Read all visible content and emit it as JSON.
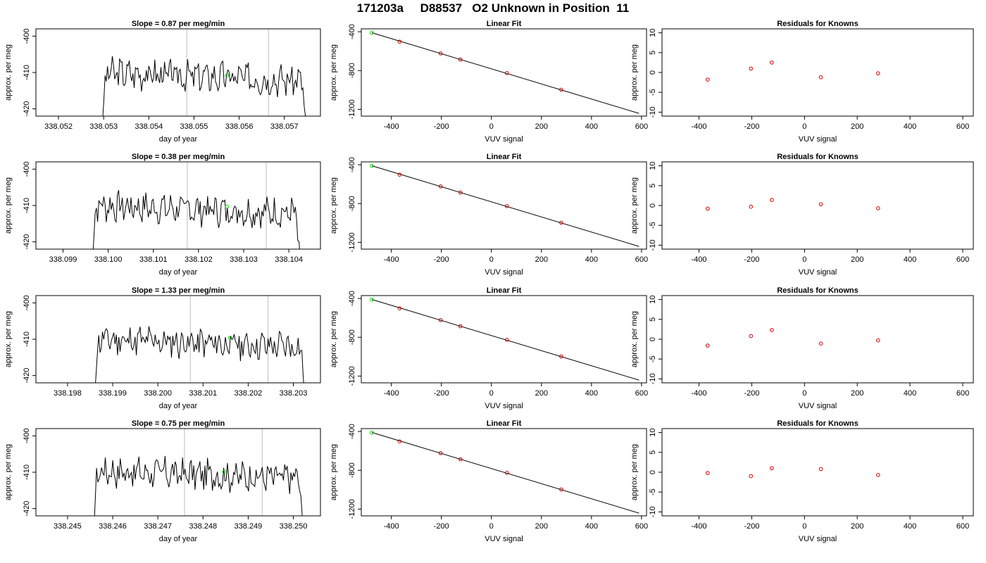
{
  "figure_title": "171203a     D88537   O2 Unknown in Position  11",
  "colors": {
    "line": "#000000",
    "grid_vline": "#c8c8c8",
    "unknown_point": "#00dd00",
    "known_point": "#cc0000",
    "frame": "#000000"
  },
  "chart_data": [
    {
      "id": "ts-1",
      "type": "line",
      "title": "Slope =  0.87  per meg/min",
      "xlabel": "day of year",
      "ylabel": "approx. per meg",
      "xlim": [
        338.0515,
        338.0578
      ],
      "ylim": [
        -422,
        -398
      ],
      "xticks": [
        "338.052",
        "338.053",
        "338.054",
        "338.055",
        "338.056",
        "338.057"
      ],
      "yticks": [
        "-400",
        "-410",
        "-420"
      ],
      "xstart": 338.05295,
      "xend": 338.05752,
      "base": -410,
      "seed": 3,
      "vlines": [
        338.05484,
        338.05665
      ],
      "unknown_point": {
        "x": 338.05573,
        "y": -410.8
      }
    },
    {
      "id": "fit-1",
      "type": "line",
      "title": "Linear Fit",
      "xlabel": "VUV signal",
      "ylabel": "approx. per meg",
      "xlim": [
        -520,
        620
      ],
      "ylim": [
        -1270,
        -370
      ],
      "xticks": [
        "-400",
        "-200",
        "0",
        "200",
        "400",
        "600"
      ],
      "yticks": [
        "-400",
        "-800",
        "-1200"
      ],
      "fit_line": {
        "x": [
          -478,
          590
        ],
        "y": [
          -410,
          -1242
        ]
      },
      "known_points": {
        "x": [
          -367,
          -203,
          -124,
          62,
          279
        ],
        "y": [
          -502,
          -623,
          -686,
          -826,
          -998
        ]
      },
      "unknown_point": {
        "x": -478,
        "y": -411
      }
    },
    {
      "id": "res-1",
      "type": "scatter",
      "title": "Residuals for Knowns",
      "xlabel": "VUV signal",
      "ylabel": "approx. per meg",
      "xlim": [
        -540,
        640
      ],
      "ylim": [
        -11,
        11
      ],
      "xticks": [
        "-400",
        "-200",
        "0",
        "200",
        "400",
        "600"
      ],
      "yticks": [
        "10",
        "5",
        "0",
        "-5",
        "-10"
      ],
      "x": [
        -367,
        -203,
        -124,
        62,
        279
      ],
      "y": [
        -1.8,
        1.0,
        2.5,
        -1.2,
        -0.2
      ]
    },
    {
      "id": "ts-2",
      "type": "line",
      "title": "Slope =  0.38  per meg/min",
      "xlabel": "day of year",
      "ylabel": "approx. per meg",
      "xlim": [
        338.0984,
        338.1047
      ],
      "ylim": [
        -422,
        -398
      ],
      "xticks": [
        "338.099",
        "338.100",
        "338.101",
        "338.102",
        "338.103",
        "338.104"
      ],
      "yticks": [
        "-400",
        "-410",
        "-420"
      ],
      "xstart": 338.09963,
      "xend": 338.10428,
      "base": -410,
      "seed": 7,
      "vlines": [
        338.10175,
        338.1035
      ],
      "unknown_point": {
        "x": 338.10263,
        "y": -410.3
      }
    },
    {
      "id": "fit-2",
      "type": "line",
      "title": "Linear Fit",
      "xlabel": "VUV signal",
      "ylabel": "approx. per meg",
      "xlim": [
        -520,
        620
      ],
      "ylim": [
        -1270,
        -370
      ],
      "xticks": [
        "-400",
        "-200",
        "0",
        "200",
        "400",
        "600"
      ],
      "yticks": [
        "-400",
        "-800",
        "-1200"
      ],
      "fit_line": {
        "x": [
          -478,
          590
        ],
        "y": [
          -410,
          -1242
        ]
      },
      "known_points": {
        "x": [
          -367,
          -203,
          -124,
          62,
          279
        ],
        "y": [
          -502,
          -623,
          -686,
          -826,
          -998
        ]
      },
      "unknown_point": {
        "x": -478,
        "y": -411
      }
    },
    {
      "id": "res-2",
      "type": "scatter",
      "title": "Residuals for Knowns",
      "xlabel": "VUV signal",
      "ylabel": "approx. per meg",
      "xlim": [
        -540,
        640
      ],
      "ylim": [
        -11,
        11
      ],
      "xticks": [
        "-400",
        "-200",
        "0",
        "200",
        "400",
        "600"
      ],
      "yticks": [
        "10",
        "5",
        "0",
        "-5",
        "-10"
      ],
      "x": [
        -367,
        -203,
        -124,
        62,
        279
      ],
      "y": [
        -0.8,
        -0.3,
        1.4,
        0.3,
        -0.7
      ]
    },
    {
      "id": "ts-3",
      "type": "line",
      "title": "Slope =  1.33  per meg/min",
      "xlabel": "day of year",
      "ylabel": "approx. per meg",
      "xlim": [
        338.1973,
        338.2036
      ],
      "ylim": [
        -422,
        -398
      ],
      "xticks": [
        "338.198",
        "338.199",
        "338.200",
        "338.201",
        "338.202",
        "338.203"
      ],
      "yticks": [
        "-400",
        "-410",
        "-420"
      ],
      "xstart": 338.19858,
      "xend": 338.2033,
      "base": -410,
      "seed": 11,
      "vlines": [
        338.20072,
        338.20244
      ],
      "unknown_point": {
        "x": 338.2016,
        "y": -409.6
      }
    },
    {
      "id": "fit-3",
      "type": "line",
      "title": "Linear Fit",
      "xlabel": "VUV signal",
      "ylabel": "approx. per meg",
      "xlim": [
        -520,
        620
      ],
      "ylim": [
        -1270,
        -370
      ],
      "xticks": [
        "-400",
        "-200",
        "0",
        "200",
        "400",
        "600"
      ],
      "yticks": [
        "-400",
        "-800",
        "-1200"
      ],
      "fit_line": {
        "x": [
          -478,
          590
        ],
        "y": [
          -410,
          -1242
        ]
      },
      "known_points": {
        "x": [
          -367,
          -203,
          -124,
          62,
          279
        ],
        "y": [
          -502,
          -623,
          -686,
          -826,
          -998
        ]
      },
      "unknown_point": {
        "x": -478,
        "y": -411
      }
    },
    {
      "id": "res-3",
      "type": "scatter",
      "title": "Residuals for Knowns",
      "xlabel": "VUV signal",
      "ylabel": "approx. per meg",
      "xlim": [
        -540,
        640
      ],
      "ylim": [
        -11,
        11
      ],
      "xticks": [
        "-400",
        "-200",
        "0",
        "200",
        "400",
        "600"
      ],
      "yticks": [
        "10",
        "5",
        "0",
        "-5",
        "-10"
      ],
      "x": [
        -367,
        -203,
        -124,
        62,
        279
      ],
      "y": [
        -1.6,
        0.8,
        2.3,
        -1.1,
        -0.3
      ]
    },
    {
      "id": "ts-4",
      "type": "line",
      "title": "Slope =  0.75  per meg/min",
      "xlabel": "day of year",
      "ylabel": "approx. per meg",
      "xlim": [
        338.2443,
        338.2506
      ],
      "ylim": [
        -422,
        -398
      ],
      "xticks": [
        "338.245",
        "338.246",
        "338.247",
        "338.248",
        "338.249",
        "338.250"
      ],
      "yticks": [
        "-400",
        "-410",
        "-420"
      ],
      "xstart": 338.24556,
      "xend": 338.25025,
      "base": -409.5,
      "seed": 17,
      "vlines": [
        338.24759,
        338.24931
      ],
      "unknown_point": {
        "x": 338.24847,
        "y": -409.9
      }
    },
    {
      "id": "fit-4",
      "type": "line",
      "title": "Linear Fit",
      "xlabel": "VUV signal",
      "ylabel": "approx. per meg",
      "xlim": [
        -520,
        620
      ],
      "ylim": [
        -1270,
        -370
      ],
      "xticks": [
        "-400",
        "-200",
        "0",
        "200",
        "400",
        "600"
      ],
      "yticks": [
        "-400",
        "-800",
        "-1200"
      ],
      "fit_line": {
        "x": [
          -478,
          590
        ],
        "y": [
          -410,
          -1242
        ]
      },
      "known_points": {
        "x": [
          -367,
          -203,
          -124,
          62,
          279
        ],
        "y": [
          -502,
          -623,
          -686,
          -826,
          -998
        ]
      },
      "unknown_point": {
        "x": -478,
        "y": -411
      }
    },
    {
      "id": "res-4",
      "type": "scatter",
      "title": "Residuals for Knowns",
      "xlabel": "VUV signal",
      "ylabel": "approx. per meg",
      "xlim": [
        -540,
        640
      ],
      "ylim": [
        -11,
        11
      ],
      "xticks": [
        "-400",
        "-200",
        "0",
        "200",
        "400",
        "600"
      ],
      "yticks": [
        "10",
        "5",
        "0",
        "-5",
        "-10"
      ],
      "x": [
        -367,
        -203,
        -124,
        62,
        279
      ],
      "y": [
        -0.2,
        -1.0,
        1.0,
        0.8,
        -0.7
      ]
    }
  ]
}
